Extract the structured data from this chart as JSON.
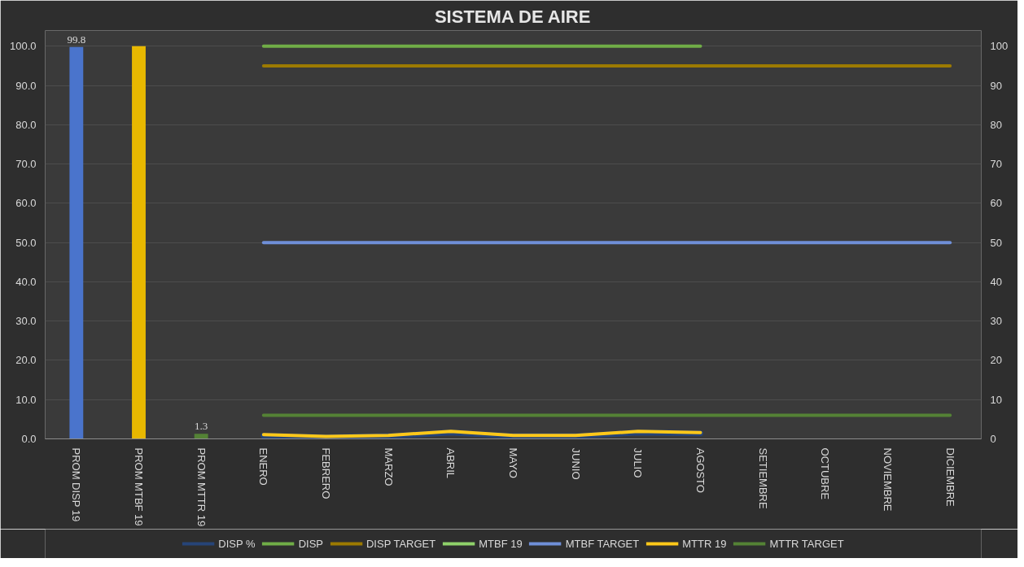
{
  "chart_data": {
    "type": "line",
    "title": "SISTEMA DE AIRE",
    "categories": [
      "PROM DISP 19",
      "PROM MTBF 19",
      "PROM MTTR 19",
      "ENERO",
      "FEBRERO",
      "MARZO",
      "ABRIL",
      "MAYO",
      "JUNIO",
      "JULIO",
      "AGOSTO",
      "SETIEMBRE",
      "OCTUBRE",
      "NOVIEMBRE",
      "DICIEMBRE"
    ],
    "series": [
      {
        "type": "bar",
        "colors": [
          "#4a74cc",
          "#e8b800",
          "#548235",
          "#548235",
          "#548235",
          "#548235",
          "#548235",
          "#548235",
          "#548235",
          "#548235",
          "#548235",
          "#548235",
          "#548235",
          "#548235",
          "#548235"
        ],
        "values": [
          99.8,
          100,
          1.3,
          null,
          null,
          null,
          null,
          null,
          null,
          null,
          null,
          null,
          null,
          null,
          null
        ],
        "value_labels": [
          "99.8",
          null,
          "1.3",
          null,
          null,
          null,
          null,
          null,
          null,
          null,
          null,
          null,
          null,
          null,
          null
        ]
      },
      {
        "name": "DISP %",
        "color": "#264478",
        "values": [
          null,
          null,
          null,
          0.8,
          0.4,
          0.7,
          1.6,
          0.7,
          0.7,
          1.6,
          1.4,
          null,
          null,
          null,
          null
        ]
      },
      {
        "name": "DISP",
        "color": "#70ad47",
        "values": [
          null,
          null,
          null,
          100,
          100,
          100,
          100,
          100,
          100,
          100,
          100,
          null,
          null,
          null,
          null
        ]
      },
      {
        "name": "DISP TARGET",
        "color": "#9c7a00",
        "values": [
          null,
          null,
          null,
          95,
          95,
          95,
          95,
          95,
          95,
          95,
          95,
          95,
          95,
          95,
          95
        ]
      },
      {
        "name": "MTBF 19",
        "color": "#8fd16a",
        "values": [
          null,
          null,
          null,
          null,
          null,
          null,
          null,
          null,
          null,
          null,
          null,
          null,
          null,
          null,
          null
        ]
      },
      {
        "name": "MTBF TARGET",
        "color": "#6f8fd8",
        "values": [
          null,
          null,
          null,
          50,
          50,
          50,
          50,
          50,
          50,
          50,
          50,
          50,
          50,
          50,
          50
        ]
      },
      {
        "name": "MTTR 19",
        "color": "#ffc819",
        "values": [
          null,
          null,
          null,
          1.1,
          0.6,
          0.9,
          1.9,
          0.9,
          0.9,
          1.9,
          1.6,
          null,
          null,
          null,
          null
        ]
      },
      {
        "name": "MTTR TARGET",
        "color": "#548235",
        "values": [
          null,
          null,
          null,
          6,
          6,
          6,
          6,
          6,
          6,
          6,
          6,
          6,
          6,
          6,
          6
        ]
      }
    ],
    "ylim": [
      0,
      104
    ],
    "yticks": [
      {
        "value": 0,
        "label": "0.0"
      },
      {
        "value": 10,
        "label": "10.0"
      },
      {
        "value": 20,
        "label": "20.0"
      },
      {
        "value": 30,
        "label": "30.0"
      },
      {
        "value": 40,
        "label": "40.0"
      },
      {
        "value": 50,
        "label": "50.0"
      },
      {
        "value": 60,
        "label": "60.0"
      },
      {
        "value": 70,
        "label": "70.0"
      },
      {
        "value": 80,
        "label": "80.0"
      },
      {
        "value": 90,
        "label": "90.0"
      },
      {
        "value": 100,
        "label": "100.0"
      }
    ],
    "y2lim": [
      0,
      104
    ],
    "y2ticks": [
      0,
      10,
      20,
      30,
      40,
      50,
      60,
      70,
      80,
      90,
      100
    ],
    "grid": "y",
    "legend": "bottom",
    "line_style": "solid",
    "marker": "none"
  }
}
